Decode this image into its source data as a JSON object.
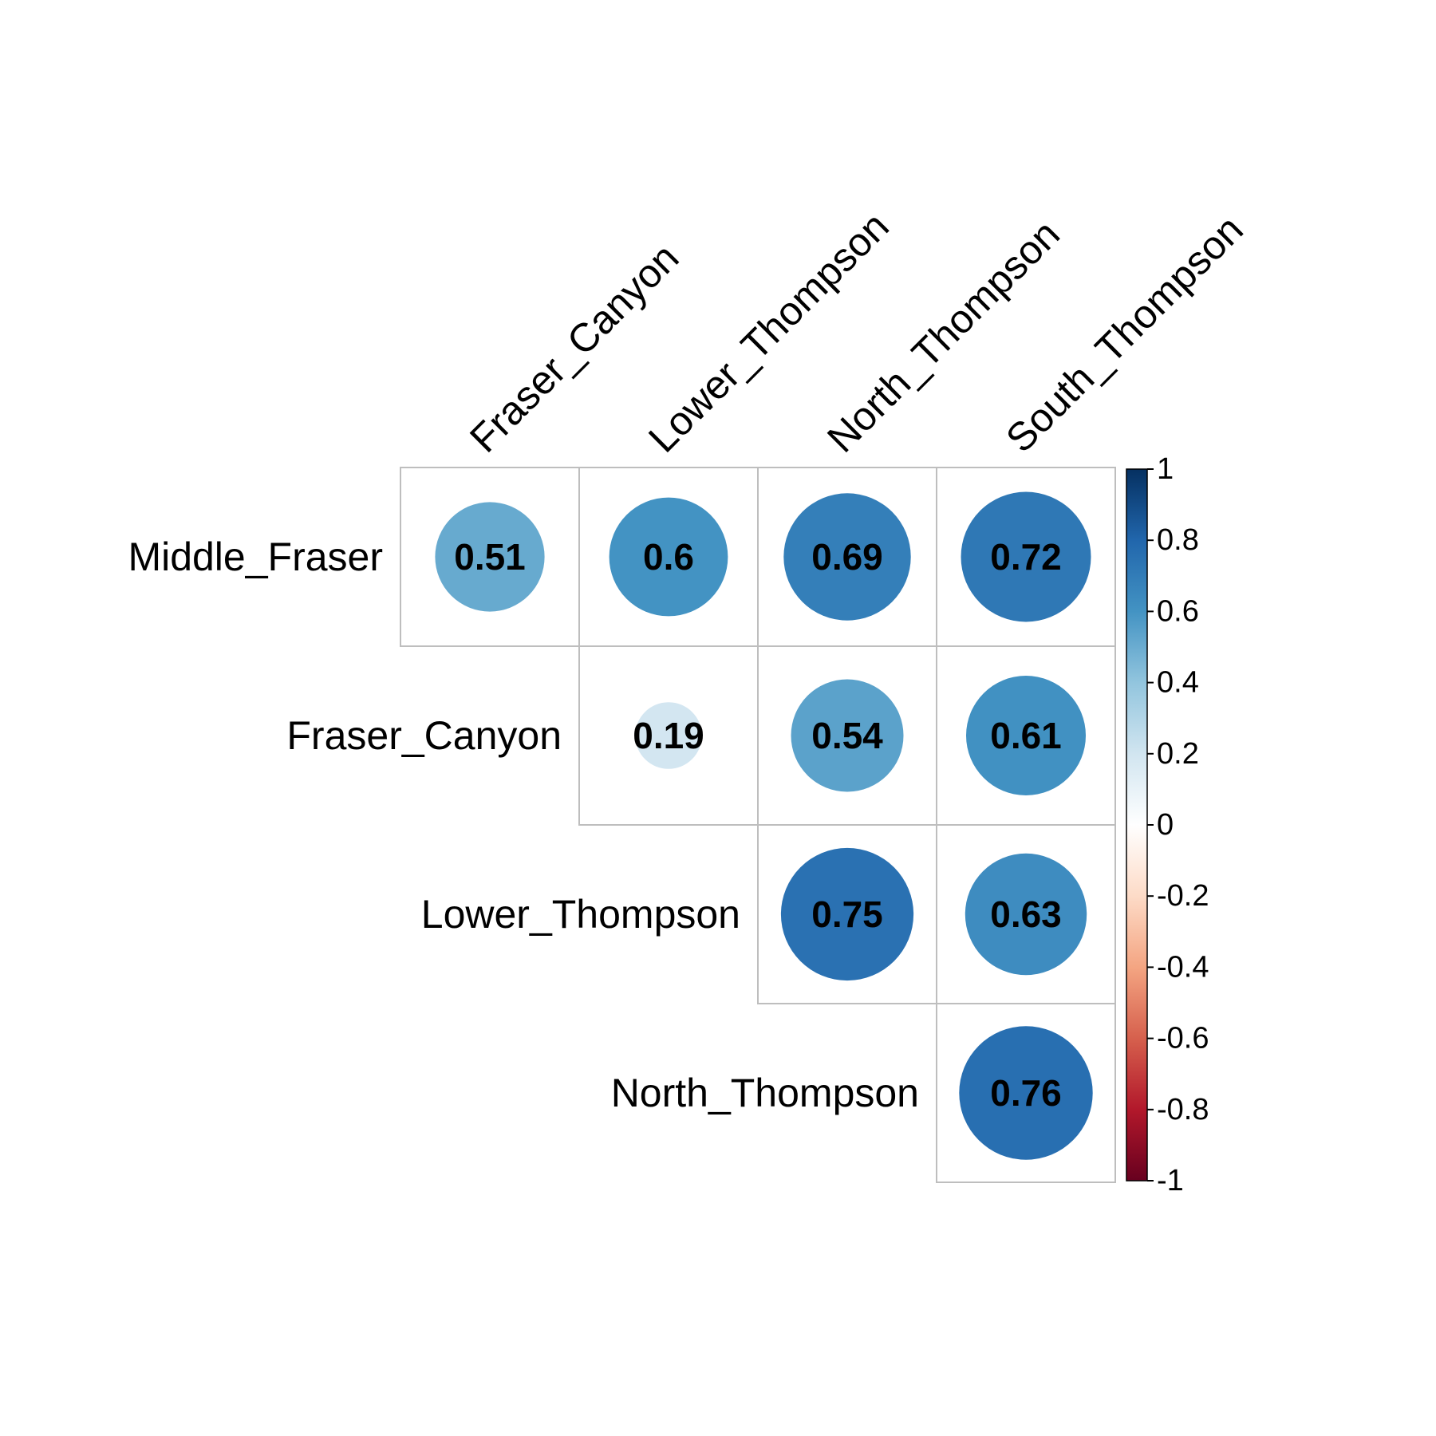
{
  "chart_data": {
    "type": "heatmap",
    "subtype": "correlation-upper-triangle-circles",
    "rows": [
      "Middle_Fraser",
      "Fraser_Canyon",
      "Lower_Thompson",
      "North_Thompson"
    ],
    "columns": [
      "Fraser_Canyon",
      "Lower_Thompson",
      "North_Thompson",
      "South_Thompson"
    ],
    "cells": [
      {
        "row": "Middle_Fraser",
        "column": "Fraser_Canyon",
        "value": 0.51,
        "label": "0.51"
      },
      {
        "row": "Middle_Fraser",
        "column": "Lower_Thompson",
        "value": 0.6,
        "label": "0.6"
      },
      {
        "row": "Middle_Fraser",
        "column": "North_Thompson",
        "value": 0.69,
        "label": "0.69"
      },
      {
        "row": "Middle_Fraser",
        "column": "South_Thompson",
        "value": 0.72,
        "label": "0.72"
      },
      {
        "row": "Fraser_Canyon",
        "column": "Lower_Thompson",
        "value": 0.19,
        "label": "0.19"
      },
      {
        "row": "Fraser_Canyon",
        "column": "North_Thompson",
        "value": 0.54,
        "label": "0.54"
      },
      {
        "row": "Fraser_Canyon",
        "column": "South_Thompson",
        "value": 0.61,
        "label": "0.61"
      },
      {
        "row": "Lower_Thompson",
        "column": "North_Thompson",
        "value": 0.75,
        "label": "0.75"
      },
      {
        "row": "Lower_Thompson",
        "column": "South_Thompson",
        "value": 0.63,
        "label": "0.63"
      },
      {
        "row": "North_Thompson",
        "column": "South_Thompson",
        "value": 0.76,
        "label": "0.76"
      }
    ],
    "color_scale": {
      "range": [
        -1,
        1
      ],
      "ticks": [
        "1",
        "0.8",
        "0.6",
        "0.4",
        "0.2",
        "0",
        "-0.2",
        "-0.4",
        "-0.6",
        "-0.8",
        "-1"
      ],
      "palette": "RdBu",
      "legend_position": "right"
    },
    "colors": {
      "grid": "#bebebe",
      "text": "#000000"
    }
  }
}
